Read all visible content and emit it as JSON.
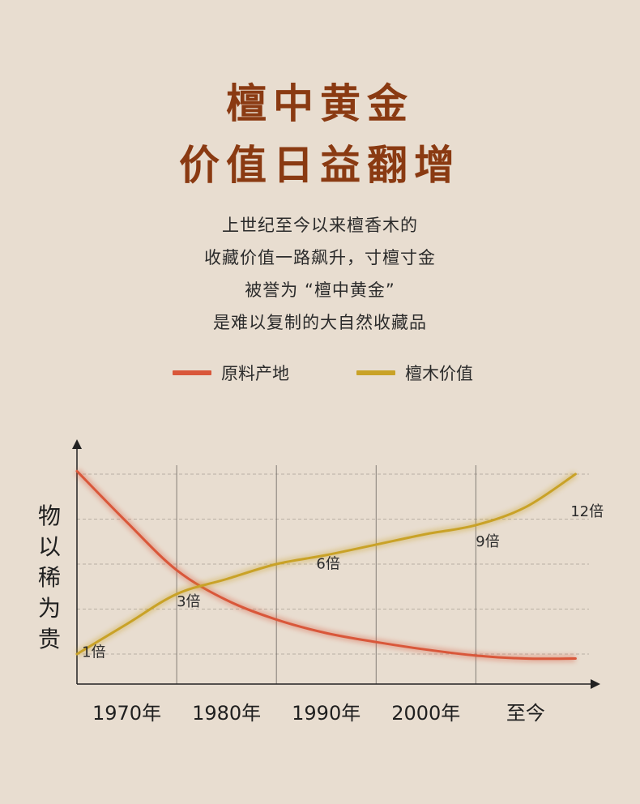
{
  "header": {
    "title_line1": "檀中黄金",
    "title_line2": "价值日益翻增"
  },
  "description": [
    "上世纪至今以来檀香木的",
    "收藏价值一路飙升，寸檀寸金",
    "被誉为 “檀中黄金”",
    "是难以复制的大自然收藏品"
  ],
  "colors": {
    "title": "#8a3a12",
    "series_origin": "#d9573a",
    "series_value": "#c9a227",
    "background": "#e8ddd0"
  },
  "chart_data": {
    "type": "line",
    "ylabel": "物以稀为贵",
    "xlabel": "",
    "categories": [
      "1970年",
      "1980年",
      "1990年",
      "2000年",
      "至今"
    ],
    "series": [
      {
        "name": "原料产地",
        "color": "#d9573a",
        "x": [
          0,
          0.5,
          1,
          1.5,
          2,
          2.5,
          3,
          3.5,
          4,
          4.5,
          5
        ],
        "values": [
          13.2,
          9.8,
          6.6,
          4.6,
          3.3,
          2.4,
          1.8,
          1.3,
          0.9,
          0.7,
          0.7
        ]
      },
      {
        "name": "檀木价值",
        "color": "#c9a227",
        "x": [
          0,
          0.5,
          1,
          1.5,
          2,
          2.5,
          3,
          3.5,
          4,
          4.5,
          5
        ],
        "values": [
          1,
          3,
          5,
          6,
          7,
          7.6,
          8.3,
          9,
          9.6,
          10.8,
          13
        ]
      }
    ],
    "annotations": [
      {
        "label": "1倍",
        "x": 0.05,
        "y": 0.8
      },
      {
        "label": "3倍",
        "x": 1.0,
        "y": 4.2
      },
      {
        "label": "6倍",
        "x": 2.4,
        "y": 6.7
      },
      {
        "label": "9倍",
        "x": 4.0,
        "y": 8.2
      },
      {
        "label": "12倍",
        "x": 4.95,
        "y": 10.2
      }
    ],
    "ylim": [
      -1,
      15
    ],
    "xlim": [
      0,
      5.2
    ],
    "grid": true
  }
}
